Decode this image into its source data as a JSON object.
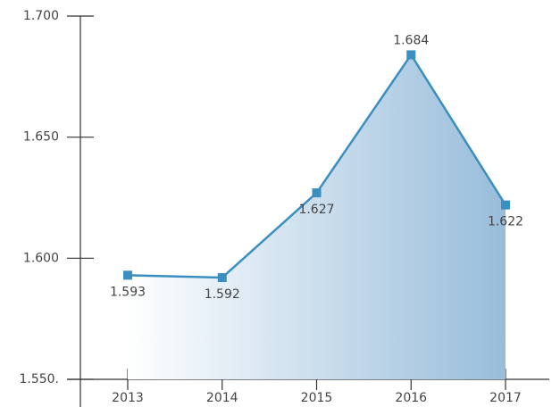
{
  "chart_data": {
    "type": "area",
    "categories": [
      "2013",
      "2014",
      "2015",
      "2016",
      "2017"
    ],
    "values": [
      1593,
      1592,
      1627,
      1684,
      1622
    ],
    "value_labels": [
      "1.593",
      "1.592",
      "1.627",
      "1.684",
      "1.622"
    ],
    "color": "#3a8fc0",
    "ylim": [
      1550,
      1700
    ],
    "yticks": [
      {
        "value": 1550,
        "label": "1.550."
      },
      {
        "value": 1600,
        "label": "1.600"
      },
      {
        "value": 1650,
        "label": "1.650"
      },
      {
        "value": 1700,
        "label": "1.700"
      }
    ]
  }
}
